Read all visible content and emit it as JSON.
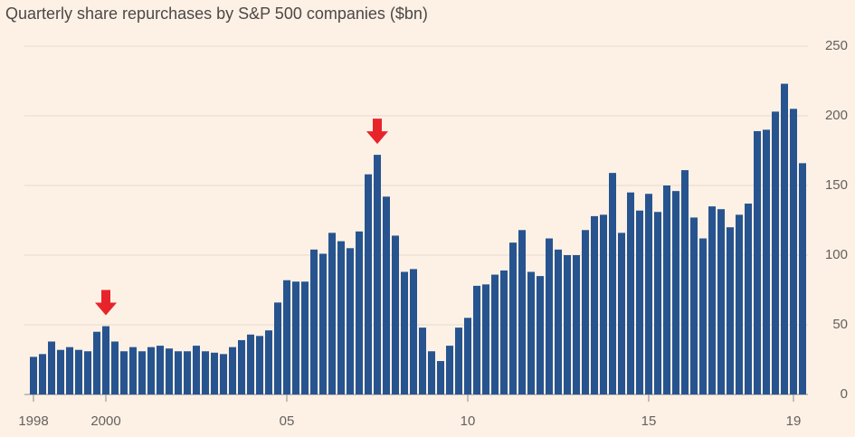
{
  "chart_data": {
    "type": "bar",
    "title": "Quarterly share repurchases by S&P 500 companies ($bn)",
    "categories": [
      "1998",
      null,
      null,
      null,
      null,
      null,
      null,
      null,
      "2000",
      null,
      null,
      null,
      null,
      null,
      null,
      null,
      null,
      null,
      null,
      null,
      null,
      null,
      null,
      null,
      null,
      null,
      null,
      null,
      "05",
      null,
      null,
      null,
      null,
      null,
      null,
      null,
      null,
      null,
      null,
      null,
      null,
      null,
      null,
      null,
      null,
      null,
      null,
      null,
      "10",
      null,
      null,
      null,
      null,
      null,
      null,
      null,
      null,
      null,
      null,
      null,
      null,
      null,
      null,
      null,
      null,
      null,
      null,
      null,
      "15",
      null,
      null,
      null,
      null,
      null,
      null,
      null,
      null,
      null,
      null,
      null,
      null,
      null,
      null,
      null,
      "19",
      null
    ],
    "values": [
      27,
      29,
      38,
      32,
      34,
      32,
      31,
      45,
      49,
      38,
      31,
      34,
      31,
      34,
      35,
      33,
      31,
      31,
      35,
      31,
      30,
      29,
      34,
      39,
      43,
      42,
      46,
      66,
      82,
      81,
      81,
      104,
      101,
      116,
      110,
      105,
      117,
      158,
      172,
      142,
      114,
      88,
      90,
      48,
      31,
      24,
      35,
      48,
      55,
      78,
      79,
      86,
      89,
      109,
      118,
      88,
      85,
      112,
      104,
      100,
      100,
      118,
      128,
      129,
      159,
      116,
      145,
      132,
      144,
      131,
      150,
      146,
      161,
      127,
      112,
      135,
      133,
      120,
      129,
      137,
      189,
      190,
      203,
      223,
      205,
      166
    ],
    "color": "#27548f",
    "ylim": [
      0,
      250
    ],
    "yticks": [
      0,
      50,
      100,
      150,
      200,
      250
    ],
    "grid": true
  }
}
